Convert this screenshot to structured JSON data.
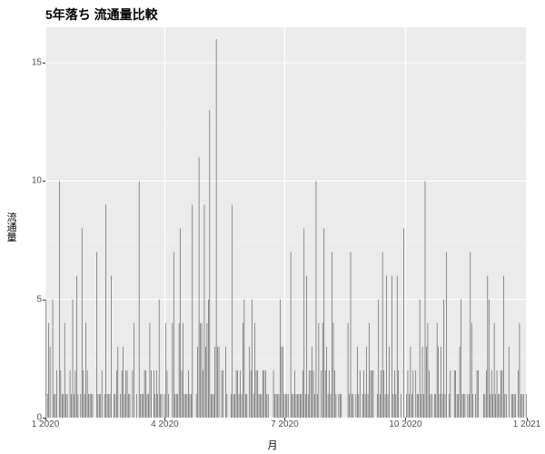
{
  "chart": {
    "type": "bar",
    "title": "5年落ち 流通量比較",
    "title_fontsize": 14,
    "title_fontweight": "bold",
    "xlabel": "月",
    "ylabel": "流通量",
    "label_fontsize": 11,
    "tick_fontsize": 10,
    "panel_background": "#ebebeb",
    "plot_background": "#ffffff",
    "grid_major_color": "#ffffff",
    "grid_minor_color": "#f5f5f5",
    "bar_color": "#595959",
    "bar_width_ratio": 0.45,
    "ylim": [
      0,
      16.5
    ],
    "y_ticks": [
      0,
      5,
      10,
      15
    ],
    "x_tick_labels": [
      "1 2020",
      "4 2020",
      "7 2020",
      "10 2020",
      "1 2021"
    ],
    "x_tick_positions": [
      0.0,
      0.248,
      0.497,
      0.748,
      1.0
    ],
    "minor_y_grid": [
      2.5,
      7.5,
      12.5
    ],
    "values": [
      5,
      1,
      4,
      3,
      0,
      5,
      1,
      1,
      2,
      0,
      10,
      2,
      1,
      1,
      4,
      1,
      1,
      0,
      2,
      1,
      5,
      1,
      2,
      6,
      1,
      0,
      1,
      8,
      2,
      1,
      4,
      2,
      1,
      1,
      1,
      1,
      0,
      0,
      7,
      1,
      1,
      1,
      2,
      0,
      1,
      9,
      1,
      1,
      1,
      6,
      0,
      1,
      1,
      2,
      3,
      0,
      1,
      2,
      3,
      1,
      2,
      2,
      1,
      1,
      0,
      2,
      4,
      0,
      1,
      0,
      10,
      1,
      1,
      1,
      2,
      2,
      1,
      1,
      4,
      2,
      0,
      2,
      1,
      2,
      1,
      5,
      1,
      1,
      0,
      1,
      4,
      2,
      1,
      0,
      0,
      4,
      7,
      1,
      1,
      1,
      4,
      8,
      2,
      4,
      1,
      1,
      1,
      2,
      1,
      1,
      9,
      0,
      0,
      1,
      3,
      11,
      4,
      4,
      2,
      9,
      3,
      4,
      5,
      13,
      1,
      1,
      1,
      3,
      16,
      3,
      3,
      0,
      2,
      2,
      0,
      3,
      1,
      0,
      0,
      1,
      9,
      1,
      1,
      2,
      2,
      1,
      2,
      1,
      4,
      5,
      1,
      1,
      0,
      3,
      2,
      5,
      1,
      4,
      2,
      2,
      1,
      1,
      1,
      2,
      2,
      2,
      1,
      1,
      0,
      0,
      0,
      2,
      1,
      1,
      1,
      1,
      5,
      3,
      3,
      1,
      1,
      1,
      1,
      0,
      7,
      1,
      1,
      2,
      1,
      1,
      1,
      1,
      1,
      2,
      8,
      1,
      6,
      1,
      2,
      2,
      3,
      2,
      1,
      10,
      1,
      4,
      0,
      2,
      4,
      8,
      2,
      3,
      1,
      2,
      1,
      7,
      4,
      2,
      1,
      0,
      1,
      1,
      1,
      0,
      0,
      0,
      0,
      4,
      1,
      7,
      1,
      1,
      0,
      1,
      3,
      1,
      2,
      0,
      1,
      2,
      1,
      3,
      1,
      4,
      2,
      2,
      2,
      0,
      0,
      1,
      5,
      1,
      2,
      7,
      2,
      1,
      6,
      1,
      3,
      0,
      6,
      1,
      2,
      1,
      6,
      2,
      0,
      1,
      0,
      8,
      0,
      1,
      2,
      1,
      3,
      1,
      2,
      0,
      2,
      1,
      1,
      5,
      1,
      3,
      1,
      10,
      3,
      4,
      2,
      1,
      1,
      0,
      1,
      1,
      4,
      3,
      1,
      3,
      1,
      5,
      1,
      7,
      0,
      1,
      2,
      0,
      0,
      2,
      2,
      1,
      1,
      3,
      5,
      1,
      1,
      1,
      0,
      1,
      1,
      7,
      4,
      1,
      0,
      1,
      2,
      2,
      0,
      0,
      0,
      1,
      1,
      2,
      6,
      5,
      1,
      2,
      1,
      4,
      1,
      2,
      1,
      1,
      2,
      2,
      6,
      1,
      1,
      0,
      3,
      0,
      1,
      1,
      1,
      1,
      0,
      2,
      4,
      1,
      1,
      1,
      0,
      1
    ]
  }
}
